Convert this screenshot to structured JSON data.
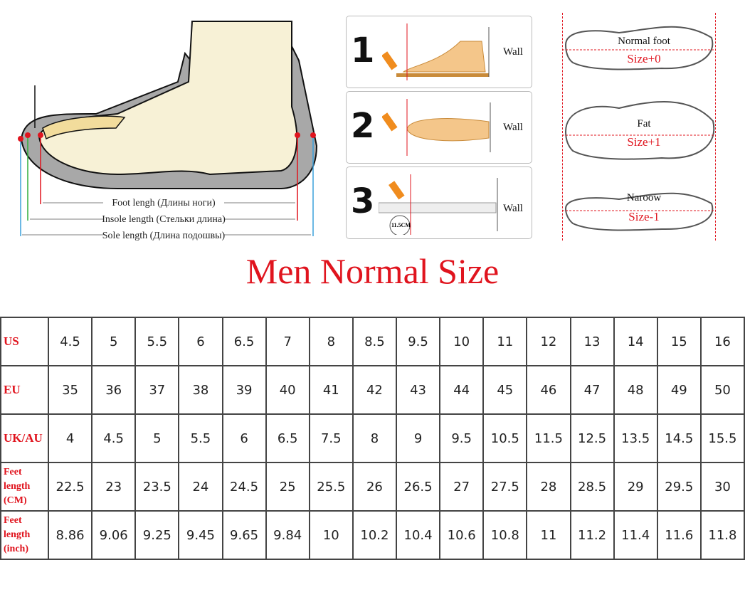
{
  "shoe_diagram": {
    "labels": [
      "Foot lengh (Длины ноги)",
      "Insole length (Стельки длина)",
      "Sole length (Длина подошвы)"
    ]
  },
  "steps": [
    {
      "number": "1",
      "wall": "Wall"
    },
    {
      "number": "2",
      "wall": "Wall"
    },
    {
      "number": "3",
      "wall": "Wall",
      "ruler_label": "11.5CM"
    }
  ],
  "foot_types": [
    {
      "label": "Normal foot",
      "size": "Size+0"
    },
    {
      "label": "Fat",
      "size": "Size+1"
    },
    {
      "label": "Naroow",
      "size": "Size-1"
    }
  ],
  "title": "Men Normal Size",
  "colors": {
    "accent": "#e0141e",
    "grid": "#444444"
  },
  "table": {
    "rows": [
      {
        "header": "US",
        "values": [
          "4.5",
          "5",
          "5.5",
          "6",
          "6.5",
          "7",
          "8",
          "8.5",
          "9.5",
          "10",
          "11",
          "12",
          "13",
          "14",
          "15",
          "16"
        ]
      },
      {
        "header": "EU",
        "values": [
          "35",
          "36",
          "37",
          "38",
          "39",
          "40",
          "41",
          "42",
          "43",
          "44",
          "45",
          "46",
          "47",
          "48",
          "49",
          "50"
        ]
      },
      {
        "header": "UK/AU",
        "values": [
          "4",
          "4.5",
          "5",
          "5.5",
          "6",
          "6.5",
          "7.5",
          "8",
          "9",
          "9.5",
          "10.5",
          "11.5",
          "12.5",
          "13.5",
          "14.5",
          "15.5"
        ]
      },
      {
        "header": "Feet length (CM)",
        "values": [
          "22.5",
          "23",
          "23.5",
          "24",
          "24.5",
          "25",
          "25.5",
          "26",
          "26.5",
          "27",
          "27.5",
          "28",
          "28.5",
          "29",
          "29.5",
          "30"
        ]
      },
      {
        "header": "Feet length (inch)",
        "values": [
          "8.86",
          "9.06",
          "9.25",
          "9.45",
          "9.65",
          "9.84",
          "10",
          "10.2",
          "10.4",
          "10.6",
          "10.8",
          "11",
          "11.2",
          "11.4",
          "11.6",
          "11.8"
        ]
      }
    ]
  }
}
